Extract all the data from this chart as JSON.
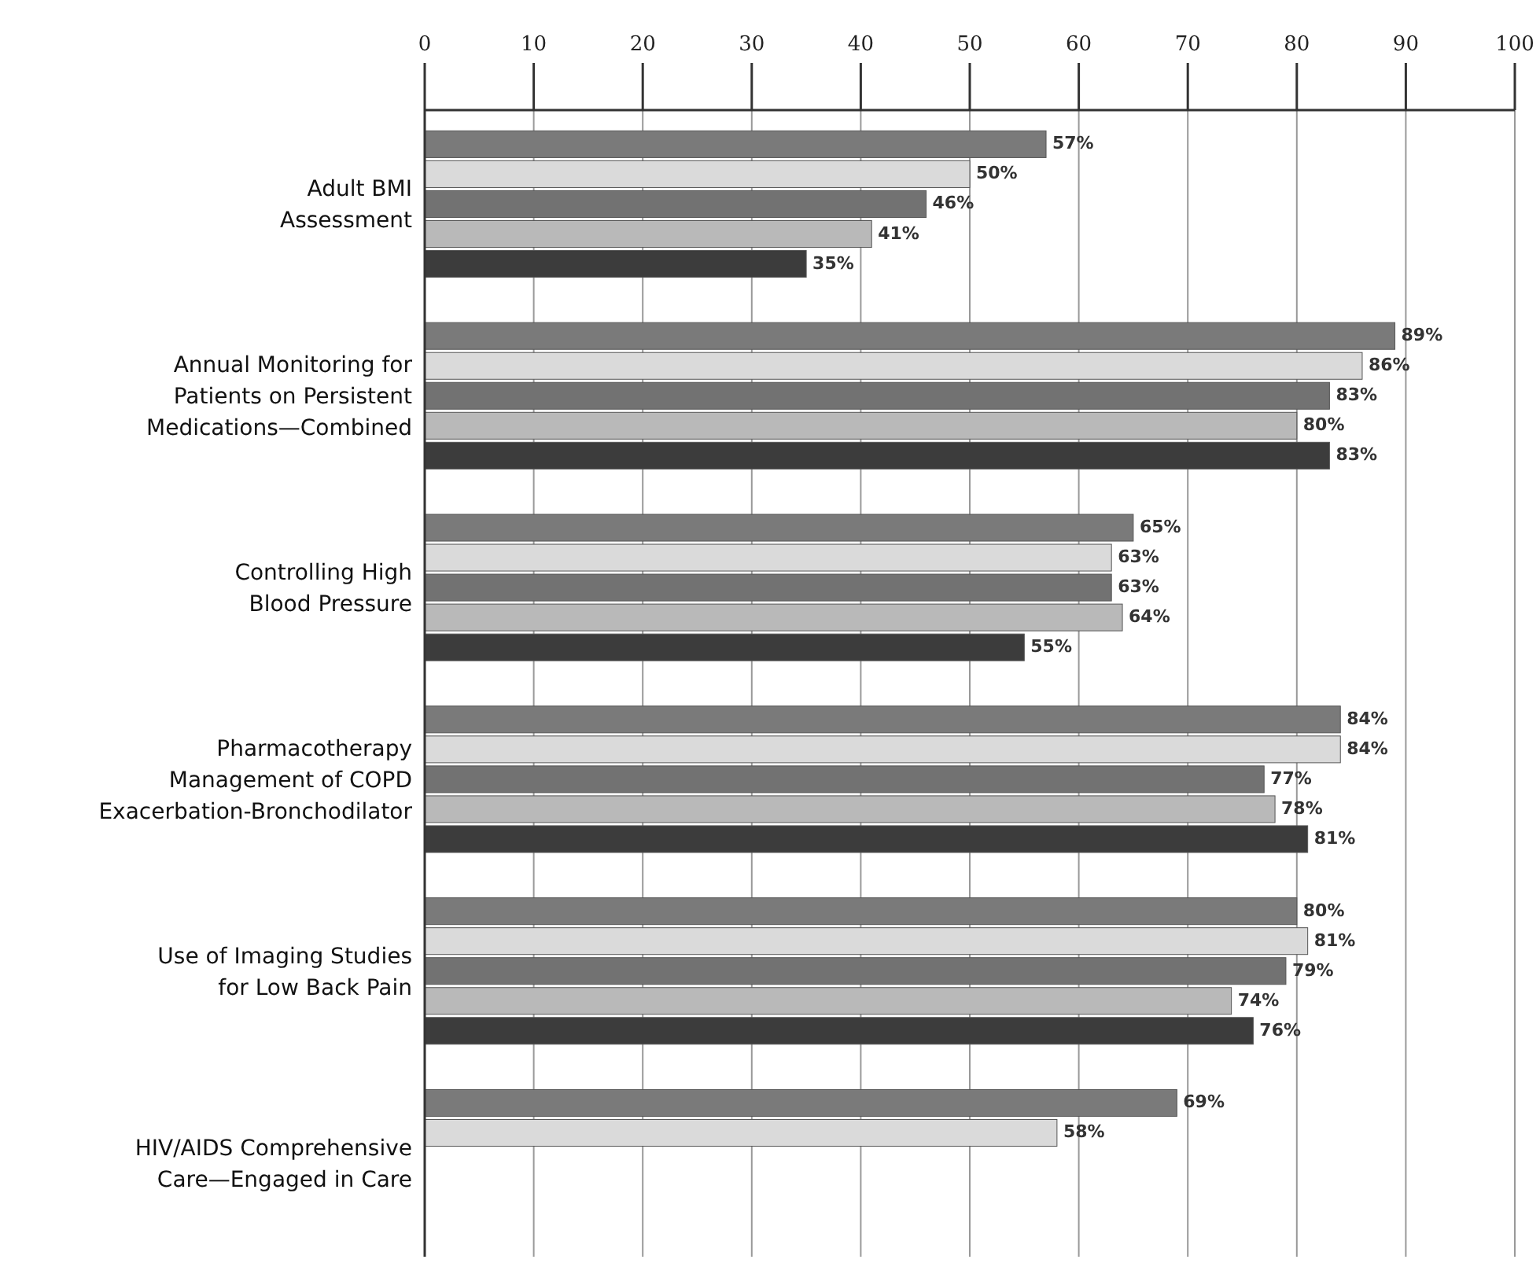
{
  "chart_data": {
    "type": "bar",
    "orientation": "horizontal",
    "categories": [
      "Adult BMI\nAssessment",
      "Annual Monitoring for\nPatients on Persistent\nMedications—Combined",
      "Controlling High\nBlood Pressure",
      "Pharmacotherapy\nManagement of COPD\nExacerbation-Bronchodilator",
      "Use of Imaging Studies\nfor Low Back Pain",
      "HIV/AIDS Comprehensive\nCare—Engaged in Care"
    ],
    "series": [
      {
        "color": "#7a7a7a",
        "values": [
          57,
          89,
          65,
          84,
          80,
          69
        ],
        "value_labels": [
          "57%",
          "89%",
          "65%",
          "84%",
          "80%",
          "69%"
        ]
      },
      {
        "color": "#dadada",
        "values": [
          50,
          86,
          63,
          84,
          81,
          58
        ],
        "value_labels": [
          "50%",
          "86%",
          "63%",
          "84%",
          "81%",
          "58%"
        ]
      },
      {
        "color": "#727272",
        "values": [
          46,
          83,
          63,
          77,
          79,
          null
        ],
        "value_labels": [
          "46%",
          "83%",
          "63%",
          "77%",
          "79%",
          null
        ]
      },
      {
        "color": "#b9b9b9",
        "values": [
          41,
          80,
          64,
          78,
          74,
          null
        ],
        "value_labels": [
          "41%",
          "80%",
          "64%",
          "78%",
          "74%",
          null
        ]
      },
      {
        "color": "#3c3c3c",
        "values": [
          35,
          83,
          55,
          81,
          76,
          null
        ],
        "value_labels": [
          "35%",
          "83%",
          "55%",
          "81%",
          "76%",
          null
        ]
      }
    ],
    "xlim": [
      0,
      100
    ],
    "xticks": [
      0,
      10,
      20,
      30,
      40,
      50,
      60,
      70,
      80,
      90,
      100
    ],
    "grid": "x"
  }
}
